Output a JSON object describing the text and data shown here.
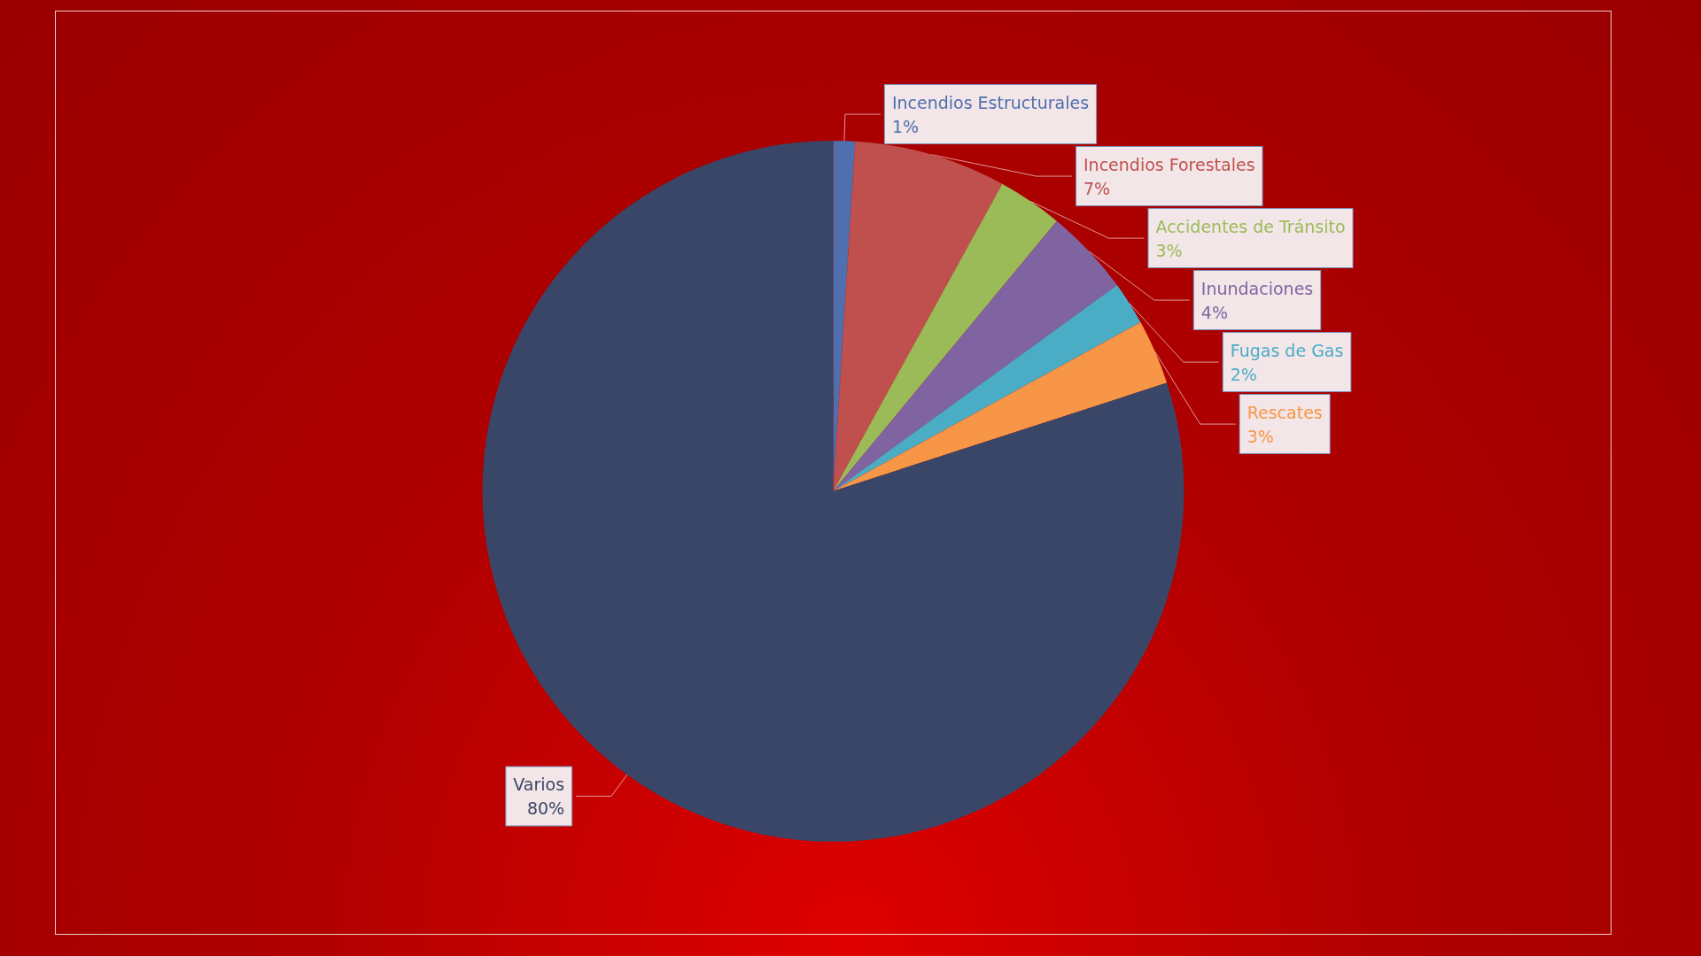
{
  "chart_data": {
    "type": "pie",
    "categories": [
      "Incendios Estructurales",
      "Incendios Forestales",
      "Accidentes de Tránsito",
      "Inundaciones",
      "Fugas de Gas",
      "Rescates",
      "Varios"
    ],
    "values": [
      1,
      7,
      3,
      4,
      2,
      3,
      80
    ],
    "value_labels": [
      "1%",
      "7%",
      "3%",
      "4%",
      "2%",
      "3%",
      "80%"
    ],
    "colors": [
      "#4f6fae",
      "#c0504d",
      "#9bbb59",
      "#8064a2",
      "#4bacc6",
      "#f79646",
      "#3a4668"
    ]
  }
}
